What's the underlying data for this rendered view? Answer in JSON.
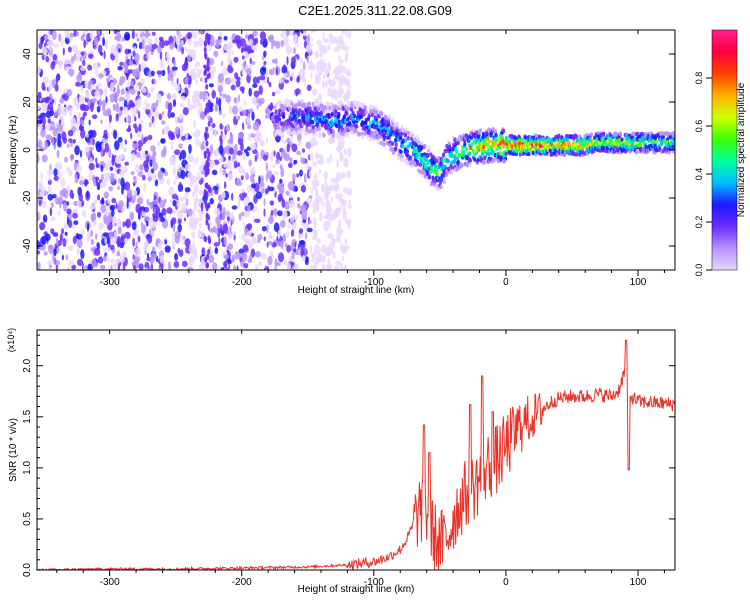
{
  "title": "C2E1.2025.311.22.08.G09",
  "chart_data": [
    {
      "type": "heatmap",
      "name": "spectrogram",
      "xlabel": "Height of straight line (km)",
      "ylabel": "Frequency (Hz)",
      "xlim": [
        -355,
        128
      ],
      "ylim": [
        -50,
        50
      ],
      "xticks": [
        -300,
        -200,
        -100,
        0,
        100
      ],
      "yticks": [
        -40,
        -20,
        0,
        20,
        40
      ],
      "colorbar": {
        "label": "Normalized spectral amplitude",
        "range": [
          0,
          1
        ],
        "ticks": [
          "0.0",
          "0.2",
          "0.4",
          "0.6",
          "0.8"
        ],
        "colors": [
          "#e8d8ff",
          "#b890ff",
          "#6a2dff",
          "#1a1aff",
          "#00c0ff",
          "#00ffa0",
          "#40ff00",
          "#d0ff00",
          "#ffb000",
          "#ff4000",
          "#ff0040",
          "#ff2090"
        ]
      },
      "noise_region_x": [
        -355,
        -148
      ],
      "ridge": {
        "x": [
          -175,
          -160,
          -145,
          -130,
          -115,
          -100,
          -90,
          -80,
          -70,
          -60,
          -55,
          -50,
          -45,
          -40,
          -35,
          -30,
          -25,
          -20,
          -10,
          0,
          10,
          20,
          30,
          40,
          50,
          60,
          70,
          80,
          90,
          100,
          110,
          128
        ],
        "freq": [
          13,
          14,
          13,
          12,
          13,
          11,
          8,
          3,
          0,
          -5,
          -8,
          -10,
          -4,
          -2,
          -1,
          0,
          1,
          1,
          2,
          2,
          2,
          2,
          2,
          2,
          2,
          2,
          3,
          3,
          3,
          3,
          3,
          3
        ],
        "amplitude": [
          0.3,
          0.35,
          0.4,
          0.45,
          0.4,
          0.4,
          0.42,
          0.45,
          0.48,
          0.55,
          0.6,
          0.5,
          0.55,
          0.6,
          0.65,
          0.7,
          0.75,
          0.8,
          0.85,
          0.9,
          0.95,
          0.95,
          0.9,
          0.85,
          0.9,
          0.8,
          0.7,
          0.65,
          0.75,
          0.65,
          0.6,
          0.55
        ]
      }
    },
    {
      "type": "line",
      "name": "snr",
      "xlabel": "Height of straight line (km)",
      "ylabel": "SNR (10 * v/v)",
      "multiplier": "(x10⁴)",
      "xlim": [
        -355,
        128
      ],
      "ylim": [
        0,
        2.35
      ],
      "xticks": [
        -300,
        -200,
        -100,
        0,
        100
      ],
      "yticks": [
        "0.0",
        "0.5",
        "1.0",
        "1.5",
        "2.0"
      ],
      "color": "#e8332a",
      "x": [
        -355,
        -300,
        -250,
        -200,
        -150,
        -120,
        -100,
        -90,
        -80,
        -75,
        -70,
        -65,
        -60,
        -55,
        -50,
        -45,
        -40,
        -35,
        -30,
        -25,
        -20,
        -15,
        -10,
        -5,
        0,
        5,
        10,
        15,
        20,
        25,
        30,
        35,
        40,
        50,
        60,
        70,
        80,
        85,
        90,
        92,
        95,
        100,
        110,
        120,
        128
      ],
      "y": [
        0.0,
        0.01,
        0.01,
        0.02,
        0.03,
        0.05,
        0.08,
        0.12,
        0.2,
        0.3,
        0.45,
        0.6,
        0.55,
        0.35,
        0.25,
        0.3,
        0.5,
        0.65,
        0.75,
        0.8,
        0.9,
        1.0,
        1.05,
        1.1,
        1.2,
        1.3,
        1.4,
        1.45,
        1.5,
        1.55,
        1.6,
        1.65,
        1.68,
        1.7,
        1.7,
        1.72,
        1.7,
        1.75,
        1.95,
        1.6,
        1.7,
        1.65,
        1.64,
        1.63,
        1.62
      ],
      "spikes": [
        {
          "x": -62,
          "y": 1.42
        },
        {
          "x": -58,
          "y": 1.15
        },
        {
          "x": -27,
          "y": 1.62
        },
        {
          "x": -18,
          "y": 1.9
        },
        {
          "x": -10,
          "y": 1.55
        },
        {
          "x": 13,
          "y": 1.4
        },
        {
          "x": 91,
          "y": 2.25
        },
        {
          "x": 93,
          "y": 0.98
        }
      ]
    }
  ]
}
